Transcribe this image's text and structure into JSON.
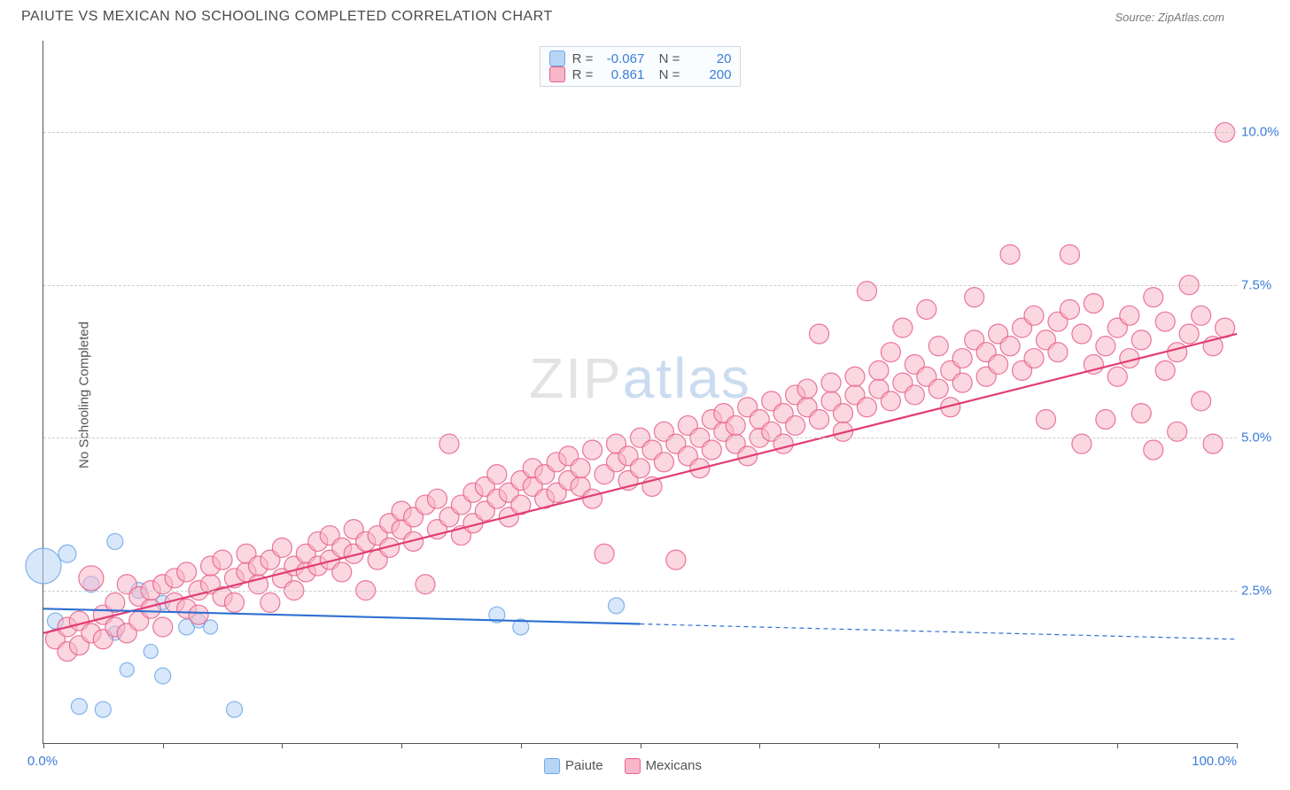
{
  "title": "PAIUTE VS MEXICAN NO SCHOOLING COMPLETED CORRELATION CHART",
  "source": "Source: ZipAtlas.com",
  "ylabel": "No Schooling Completed",
  "watermark": {
    "part1": "ZIP",
    "part2": "atlas"
  },
  "chart": {
    "type": "scatter",
    "background_color": "#ffffff",
    "grid_color": "#cccccc",
    "grid_dash": "4,4",
    "xlim": [
      0,
      100
    ],
    "ylim": [
      0,
      11.5
    ],
    "ytick_positions": [
      2.5,
      5.0,
      7.5,
      10.0
    ],
    "ytick_labels": [
      "2.5%",
      "5.0%",
      "7.5%",
      "10.0%"
    ],
    "ytick_color": "#3b7dd8",
    "xtick_positions": [
      0,
      10,
      20,
      30,
      40,
      50,
      60,
      70,
      80,
      90,
      100
    ],
    "xrange_labels": {
      "min": "0.0%",
      "max": "100.0%",
      "color": "#3b7dd8"
    },
    "marker_radius_base": 11,
    "marker_opacity": 0.55,
    "marker_stroke_opacity": 0.85,
    "series": [
      {
        "name": "Paiute",
        "color": "#6fa8e8",
        "fill": "#b8d4f5",
        "swatch_fill": "#b8d4f5",
        "swatch_border": "#6fa8e8",
        "R": "-0.067",
        "N": "20",
        "trend": {
          "x1": 0,
          "y1": 2.2,
          "x2": 50,
          "y2": 1.95,
          "x3": 100,
          "y3": 1.7,
          "color": "#2e6fd1",
          "width": 2.2
        },
        "points": [
          {
            "x": 0,
            "y": 2.9,
            "r": 20
          },
          {
            "x": 2,
            "y": 3.1,
            "r": 10
          },
          {
            "x": 1,
            "y": 2.0,
            "r": 9
          },
          {
            "x": 3,
            "y": 0.6,
            "r": 9
          },
          {
            "x": 5,
            "y": 0.55,
            "r": 9
          },
          {
            "x": 4,
            "y": 2.6,
            "r": 9
          },
          {
            "x": 6,
            "y": 3.3,
            "r": 9
          },
          {
            "x": 7,
            "y": 1.2,
            "r": 8
          },
          {
            "x": 8,
            "y": 2.5,
            "r": 9
          },
          {
            "x": 10,
            "y": 1.1,
            "r": 9
          },
          {
            "x": 10,
            "y": 2.3,
            "r": 8
          },
          {
            "x": 12,
            "y": 1.9,
            "r": 9
          },
          {
            "x": 13,
            "y": 2.0,
            "r": 8
          },
          {
            "x": 14,
            "y": 1.9,
            "r": 8
          },
          {
            "x": 16,
            "y": 0.55,
            "r": 9
          },
          {
            "x": 38,
            "y": 2.1,
            "r": 9
          },
          {
            "x": 40,
            "y": 1.9,
            "r": 9
          },
          {
            "x": 48,
            "y": 2.25,
            "r": 9
          },
          {
            "x": 6,
            "y": 1.8,
            "r": 8
          },
          {
            "x": 9,
            "y": 1.5,
            "r": 8
          }
        ]
      },
      {
        "name": "Mexicans",
        "color": "#e85f8a",
        "fill": "#f7b6c9",
        "swatch_fill": "#f7b6c9",
        "swatch_border": "#e85f8a",
        "R": "0.861",
        "N": "200",
        "trend": {
          "x1": 0,
          "y1": 1.8,
          "x2": 100,
          "y2": 6.7,
          "color": "#e23d73",
          "width": 2.2
        },
        "points": [
          {
            "x": 1,
            "y": 1.7
          },
          {
            "x": 2,
            "y": 1.9
          },
          {
            "x": 2,
            "y": 1.5
          },
          {
            "x": 3,
            "y": 1.6
          },
          {
            "x": 3,
            "y": 2.0
          },
          {
            "x": 4,
            "y": 1.8
          },
          {
            "x": 4,
            "y": 2.7,
            "r": 14
          },
          {
            "x": 5,
            "y": 1.7
          },
          {
            "x": 5,
            "y": 2.1
          },
          {
            "x": 6,
            "y": 1.9
          },
          {
            "x": 6,
            "y": 2.3
          },
          {
            "x": 7,
            "y": 2.6
          },
          {
            "x": 7,
            "y": 1.8
          },
          {
            "x": 8,
            "y": 2.0
          },
          {
            "x": 8,
            "y": 2.4
          },
          {
            "x": 9,
            "y": 2.2
          },
          {
            "x": 9,
            "y": 2.5
          },
          {
            "x": 10,
            "y": 1.9
          },
          {
            "x": 10,
            "y": 2.6
          },
          {
            "x": 11,
            "y": 2.3
          },
          {
            "x": 11,
            "y": 2.7
          },
          {
            "x": 12,
            "y": 2.2
          },
          {
            "x": 12,
            "y": 2.8
          },
          {
            "x": 13,
            "y": 2.5
          },
          {
            "x": 13,
            "y": 2.1
          },
          {
            "x": 14,
            "y": 2.6
          },
          {
            "x": 14,
            "y": 2.9
          },
          {
            "x": 15,
            "y": 2.4
          },
          {
            "x": 15,
            "y": 3.0
          },
          {
            "x": 16,
            "y": 2.7
          },
          {
            "x": 16,
            "y": 2.3
          },
          {
            "x": 17,
            "y": 2.8
          },
          {
            "x": 17,
            "y": 3.1
          },
          {
            "x": 18,
            "y": 2.6
          },
          {
            "x": 18,
            "y": 2.9
          },
          {
            "x": 19,
            "y": 2.3
          },
          {
            "x": 19,
            "y": 3.0
          },
          {
            "x": 20,
            "y": 2.7
          },
          {
            "x": 20,
            "y": 3.2
          },
          {
            "x": 21,
            "y": 2.9
          },
          {
            "x": 21,
            "y": 2.5
          },
          {
            "x": 22,
            "y": 3.1
          },
          {
            "x": 22,
            "y": 2.8
          },
          {
            "x": 23,
            "y": 3.3
          },
          {
            "x": 23,
            "y": 2.9
          },
          {
            "x": 24,
            "y": 3.0
          },
          {
            "x": 24,
            "y": 3.4
          },
          {
            "x": 25,
            "y": 3.2
          },
          {
            "x": 25,
            "y": 2.8
          },
          {
            "x": 26,
            "y": 3.5
          },
          {
            "x": 26,
            "y": 3.1
          },
          {
            "x": 27,
            "y": 3.3
          },
          {
            "x": 27,
            "y": 2.5
          },
          {
            "x": 28,
            "y": 3.4
          },
          {
            "x": 28,
            "y": 3.0
          },
          {
            "x": 29,
            "y": 3.6
          },
          {
            "x": 29,
            "y": 3.2
          },
          {
            "x": 30,
            "y": 3.5
          },
          {
            "x": 30,
            "y": 3.8
          },
          {
            "x": 31,
            "y": 3.3
          },
          {
            "x": 31,
            "y": 3.7
          },
          {
            "x": 32,
            "y": 3.9
          },
          {
            "x": 32,
            "y": 2.6
          },
          {
            "x": 33,
            "y": 3.5
          },
          {
            "x": 33,
            "y": 4.0
          },
          {
            "x": 34,
            "y": 3.7
          },
          {
            "x": 34,
            "y": 4.9
          },
          {
            "x": 35,
            "y": 3.4
          },
          {
            "x": 35,
            "y": 3.9
          },
          {
            "x": 36,
            "y": 4.1
          },
          {
            "x": 36,
            "y": 3.6
          },
          {
            "x": 37,
            "y": 3.8
          },
          {
            "x": 37,
            "y": 4.2
          },
          {
            "x": 38,
            "y": 4.0
          },
          {
            "x": 38,
            "y": 4.4
          },
          {
            "x": 39,
            "y": 3.7
          },
          {
            "x": 39,
            "y": 4.1
          },
          {
            "x": 40,
            "y": 4.3
          },
          {
            "x": 40,
            "y": 3.9
          },
          {
            "x": 41,
            "y": 4.2
          },
          {
            "x": 41,
            "y": 4.5
          },
          {
            "x": 42,
            "y": 4.0
          },
          {
            "x": 42,
            "y": 4.4
          },
          {
            "x": 43,
            "y": 4.6
          },
          {
            "x": 43,
            "y": 4.1
          },
          {
            "x": 44,
            "y": 4.3
          },
          {
            "x": 44,
            "y": 4.7
          },
          {
            "x": 45,
            "y": 4.2
          },
          {
            "x": 45,
            "y": 4.5
          },
          {
            "x": 46,
            "y": 4.8
          },
          {
            "x": 46,
            "y": 4.0
          },
          {
            "x": 47,
            "y": 4.4
          },
          {
            "x": 47,
            "y": 3.1
          },
          {
            "x": 48,
            "y": 4.6
          },
          {
            "x": 48,
            "y": 4.9
          },
          {
            "x": 49,
            "y": 4.3
          },
          {
            "x": 49,
            "y": 4.7
          },
          {
            "x": 50,
            "y": 5.0
          },
          {
            "x": 50,
            "y": 4.5
          },
          {
            "x": 51,
            "y": 4.8
          },
          {
            "x": 51,
            "y": 4.2
          },
          {
            "x": 52,
            "y": 4.6
          },
          {
            "x": 52,
            "y": 5.1
          },
          {
            "x": 53,
            "y": 4.9
          },
          {
            "x": 53,
            "y": 3.0
          },
          {
            "x": 54,
            "y": 4.7
          },
          {
            "x": 54,
            "y": 5.2
          },
          {
            "x": 55,
            "y": 5.0
          },
          {
            "x": 55,
            "y": 4.5
          },
          {
            "x": 56,
            "y": 5.3
          },
          {
            "x": 56,
            "y": 4.8
          },
          {
            "x": 57,
            "y": 5.1
          },
          {
            "x": 57,
            "y": 5.4
          },
          {
            "x": 58,
            "y": 4.9
          },
          {
            "x": 58,
            "y": 5.2
          },
          {
            "x": 59,
            "y": 5.5
          },
          {
            "x": 59,
            "y": 4.7
          },
          {
            "x": 60,
            "y": 5.0
          },
          {
            "x": 60,
            "y": 5.3
          },
          {
            "x": 61,
            "y": 5.6
          },
          {
            "x": 61,
            "y": 5.1
          },
          {
            "x": 62,
            "y": 5.4
          },
          {
            "x": 62,
            "y": 4.9
          },
          {
            "x": 63,
            "y": 5.7
          },
          {
            "x": 63,
            "y": 5.2
          },
          {
            "x": 64,
            "y": 5.5
          },
          {
            "x": 64,
            "y": 5.8
          },
          {
            "x": 65,
            "y": 5.3
          },
          {
            "x": 65,
            "y": 6.7
          },
          {
            "x": 66,
            "y": 5.6
          },
          {
            "x": 66,
            "y": 5.9
          },
          {
            "x": 67,
            "y": 5.4
          },
          {
            "x": 67,
            "y": 5.1
          },
          {
            "x": 68,
            "y": 5.7
          },
          {
            "x": 68,
            "y": 6.0
          },
          {
            "x": 69,
            "y": 5.5
          },
          {
            "x": 69,
            "y": 7.4
          },
          {
            "x": 70,
            "y": 5.8
          },
          {
            "x": 70,
            "y": 6.1
          },
          {
            "x": 71,
            "y": 5.6
          },
          {
            "x": 71,
            "y": 6.4
          },
          {
            "x": 72,
            "y": 5.9
          },
          {
            "x": 72,
            "y": 6.8
          },
          {
            "x": 73,
            "y": 5.7
          },
          {
            "x": 73,
            "y": 6.2
          },
          {
            "x": 74,
            "y": 6.0
          },
          {
            "x": 74,
            "y": 7.1
          },
          {
            "x": 75,
            "y": 5.8
          },
          {
            "x": 75,
            "y": 6.5
          },
          {
            "x": 76,
            "y": 6.1
          },
          {
            "x": 76,
            "y": 5.5
          },
          {
            "x": 77,
            "y": 6.3
          },
          {
            "x": 77,
            "y": 5.9
          },
          {
            "x": 78,
            "y": 6.6
          },
          {
            "x": 78,
            "y": 7.3
          },
          {
            "x": 79,
            "y": 6.0
          },
          {
            "x": 79,
            "y": 6.4
          },
          {
            "x": 80,
            "y": 6.7
          },
          {
            "x": 80,
            "y": 6.2
          },
          {
            "x": 81,
            "y": 8.0
          },
          {
            "x": 81,
            "y": 6.5
          },
          {
            "x": 82,
            "y": 6.1
          },
          {
            "x": 82,
            "y": 6.8
          },
          {
            "x": 83,
            "y": 6.3
          },
          {
            "x": 83,
            "y": 7.0
          },
          {
            "x": 84,
            "y": 6.6
          },
          {
            "x": 84,
            "y": 5.3
          },
          {
            "x": 85,
            "y": 6.9
          },
          {
            "x": 85,
            "y": 6.4
          },
          {
            "x": 86,
            "y": 7.1
          },
          {
            "x": 86,
            "y": 8.0
          },
          {
            "x": 87,
            "y": 6.7
          },
          {
            "x": 87,
            "y": 4.9
          },
          {
            "x": 88,
            "y": 6.2
          },
          {
            "x": 88,
            "y": 7.2
          },
          {
            "x": 89,
            "y": 6.5
          },
          {
            "x": 89,
            "y": 5.3
          },
          {
            "x": 90,
            "y": 6.8
          },
          {
            "x": 90,
            "y": 6.0
          },
          {
            "x": 91,
            "y": 7.0
          },
          {
            "x": 91,
            "y": 6.3
          },
          {
            "x": 92,
            "y": 5.4
          },
          {
            "x": 92,
            "y": 6.6
          },
          {
            "x": 93,
            "y": 7.3
          },
          {
            "x": 93,
            "y": 4.8
          },
          {
            "x": 94,
            "y": 6.1
          },
          {
            "x": 94,
            "y": 6.9
          },
          {
            "x": 95,
            "y": 5.1
          },
          {
            "x": 95,
            "y": 6.4
          },
          {
            "x": 96,
            "y": 7.5
          },
          {
            "x": 96,
            "y": 6.7
          },
          {
            "x": 97,
            "y": 5.6
          },
          {
            "x": 97,
            "y": 7.0
          },
          {
            "x": 98,
            "y": 6.5
          },
          {
            "x": 98,
            "y": 4.9
          },
          {
            "x": 99,
            "y": 10.0
          },
          {
            "x": 99,
            "y": 6.8
          }
        ]
      }
    ]
  },
  "legend_bottom": [
    {
      "label": "Paiute",
      "fill": "#b8d4f5",
      "border": "#6fa8e8"
    },
    {
      "label": "Mexicans",
      "fill": "#f7b6c9",
      "border": "#e85f8a"
    }
  ]
}
